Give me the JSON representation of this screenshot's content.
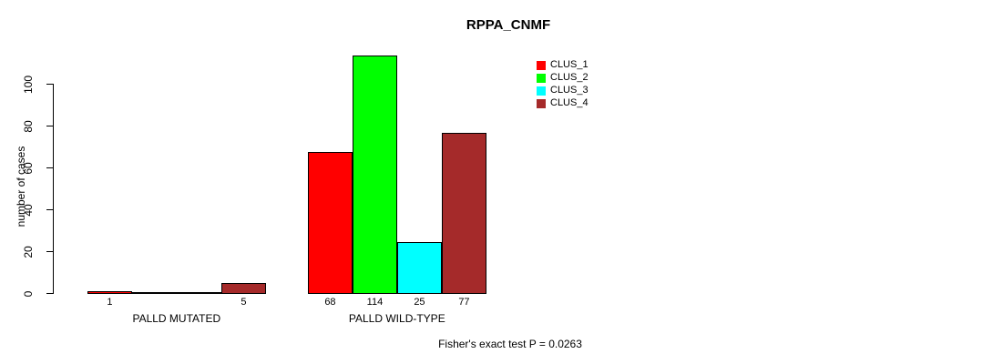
{
  "chart_data": {
    "type": "bar",
    "title": "RPPA_CNMF",
    "ylabel": "number of cases",
    "xlabel": "",
    "ylim": [
      0,
      115
    ],
    "yticks": [
      0,
      20,
      40,
      60,
      80,
      100
    ],
    "grid": false,
    "legend_position": "top-right",
    "categories": [
      "PALLD MUTATED",
      "PALLD WILD-TYPE"
    ],
    "series": [
      {
        "name": "CLUS_1",
        "color": "#ff0000",
        "values": [
          1,
          68
        ]
      },
      {
        "name": "CLUS_2",
        "color": "#00ff00",
        "values": [
          0,
          114
        ]
      },
      {
        "name": "CLUS_3",
        "color": "#00ffff",
        "values": [
          0,
          25
        ]
      },
      {
        "name": "CLUS_4",
        "color": "#a52a2a",
        "values": [
          5,
          77
        ]
      }
    ],
    "bar_labels": [
      [
        "1",
        "",
        "",
        "5"
      ],
      [
        "68",
        "114",
        "25",
        "77"
      ]
    ],
    "footnote": "Fisher's exact test P = 0.0263"
  },
  "colors": {
    "background": "#ffffff",
    "axis": "#000000",
    "bar_border": "#000000",
    "text": "#000000"
  }
}
